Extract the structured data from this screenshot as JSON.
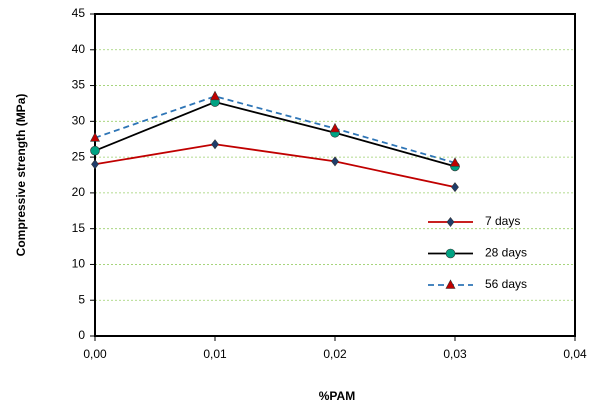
{
  "chart_data": {
    "type": "line",
    "x_label": "%PAM",
    "y_label": "Compressive strength (MPa)",
    "x": [
      0,
      0.01,
      0.02,
      0.03
    ],
    "series": [
      {
        "name": "7 days",
        "color": "#c00000",
        "marker": "diamond",
        "marker_color": "#1f3d6b",
        "dashed": false,
        "values": [
          24.0,
          26.8,
          24.4,
          20.8
        ]
      },
      {
        "name": "28 days",
        "color": "#000000",
        "marker": "circle",
        "marker_color": "#00a383",
        "dashed": false,
        "values": [
          25.9,
          32.7,
          28.4,
          23.7
        ]
      },
      {
        "name": "56 days",
        "color": "#2e75b6",
        "marker": "triangle",
        "marker_color": "#c00000",
        "dashed": true,
        "values": [
          27.7,
          33.5,
          29.0,
          24.2
        ]
      }
    ],
    "xlim": [
      0,
      0.04
    ],
    "xticks": [
      {
        "value": 0,
        "label": "0,00"
      },
      {
        "value": 0.01,
        "label": "0,01"
      },
      {
        "value": 0.02,
        "label": "0,02"
      },
      {
        "value": 0.03,
        "label": "0,03"
      },
      {
        "value": 0.04,
        "label": "0,04"
      }
    ],
    "ylim": [
      0,
      45
    ],
    "yticks": [
      0,
      5,
      10,
      15,
      20,
      25,
      30,
      35,
      40,
      45
    ],
    "grid": true,
    "legend": "lower right"
  }
}
